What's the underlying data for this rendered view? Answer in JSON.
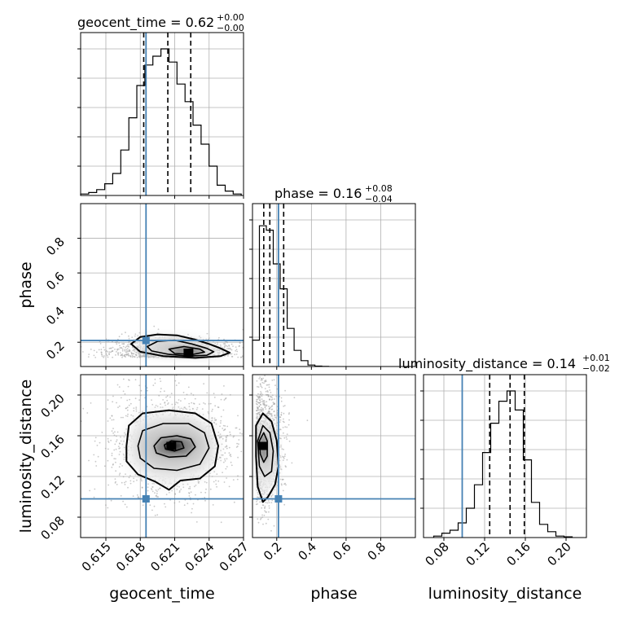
{
  "chart_data": {
    "type": "corner",
    "parameters": [
      "geocent_time",
      "phase",
      "luminosity_distance"
    ],
    "titles": [
      {
        "param": "geocent_time",
        "label": "geocent_time",
        "median": "0.62",
        "plus": "+0.00",
        "minus": "−0.00"
      },
      {
        "param": "phase",
        "label": "phase",
        "median": "0.16",
        "plus": "+0.08",
        "minus": "−0.04"
      },
      {
        "param": "luminosity_distance",
        "label": "luminosity_distance",
        "median": "0.14",
        "plus": "+0.01",
        "minus": "−0.02"
      }
    ],
    "axis_labels": {
      "x": [
        "geocent_time",
        "phase",
        "luminosity_distance"
      ],
      "y": [
        "phase",
        "luminosity_distance"
      ]
    },
    "ranges": {
      "geocent_time": [
        0.6128,
        0.627
      ],
      "phase": [
        0.06,
        1.0
      ],
      "luminosity_distance": [
        0.06,
        0.22
      ]
    },
    "ticks": {
      "geocent_time": {
        "values": [
          0.615,
          0.618,
          0.621,
          0.624,
          0.627
        ],
        "labels": [
          "0.615",
          "0.618",
          "0.621",
          "0.624",
          "0.627"
        ]
      },
      "phase_x": {
        "values": [
          0.2,
          0.4,
          0.6,
          0.8
        ],
        "labels": [
          "0.2",
          "0.4",
          "0.6",
          "0.8"
        ]
      },
      "phase_y": {
        "values": [
          0.2,
          0.4,
          0.6,
          0.8
        ],
        "labels": [
          "0.2",
          "0.4",
          "0.6",
          "0.8"
        ]
      },
      "luminosity_distance": {
        "values": [
          0.08,
          0.12,
          0.16,
          0.2
        ],
        "labels": [
          "0.08",
          "0.12",
          "0.16",
          "0.20"
        ]
      }
    },
    "truths": {
      "geocent_time": 0.6185,
      "phase": 0.21,
      "luminosity_distance": 0.098
    },
    "quantiles": {
      "geocent_time": [
        0.6183,
        0.6204,
        0.6224
      ],
      "phase": [
        0.125,
        0.16,
        0.24
      ],
      "luminosity_distance": [
        0.125,
        0.145,
        0.159
      ]
    },
    "histograms": {
      "geocent_time": {
        "edges": [
          0.6128,
          0.6135,
          0.6142,
          0.6149,
          0.6156,
          0.6163,
          0.617,
          0.6177,
          0.6184,
          0.6191,
          0.6198,
          0.6205,
          0.6212,
          0.6219,
          0.6226,
          0.6233,
          0.624,
          0.6247,
          0.6254,
          0.6261,
          0.6268
        ],
        "counts": [
          0.01,
          0.02,
          0.04,
          0.08,
          0.15,
          0.31,
          0.53,
          0.75,
          0.89,
          0.95,
          1.0,
          0.91,
          0.76,
          0.64,
          0.48,
          0.35,
          0.2,
          0.07,
          0.03,
          0.01
        ]
      },
      "phase": {
        "edges": [
          0.06,
          0.1,
          0.14,
          0.18,
          0.22,
          0.26,
          0.3,
          0.34,
          0.38,
          0.42,
          0.46,
          0.5
        ],
        "counts": [
          0.18,
          0.96,
          0.93,
          0.7,
          0.53,
          0.26,
          0.11,
          0.04,
          0.01,
          0.003,
          0.001
        ]
      },
      "luminosity_distance": {
        "edges": [
          0.07,
          0.078,
          0.086,
          0.094,
          0.102,
          0.11,
          0.118,
          0.126,
          0.134,
          0.142,
          0.15,
          0.158,
          0.166,
          0.174,
          0.182,
          0.19,
          0.198,
          0.206
        ],
        "counts": [
          0.01,
          0.03,
          0.05,
          0.1,
          0.2,
          0.36,
          0.58,
          0.78,
          0.93,
          1.0,
          0.87,
          0.53,
          0.24,
          0.09,
          0.04,
          0.01,
          0.005
        ]
      }
    },
    "contours": {
      "phase_vs_geocent_time": {
        "peak": [
          0.6222,
          0.14
        ],
        "levels": [
          [
            [
              0.6172,
              0.19
            ],
            [
              0.618,
              0.23
            ],
            [
              0.6195,
              0.245
            ],
            [
              0.6212,
              0.24
            ],
            [
              0.6228,
              0.215
            ],
            [
              0.624,
              0.19
            ],
            [
              0.625,
              0.165
            ],
            [
              0.6258,
              0.14
            ],
            [
              0.625,
              0.12
            ],
            [
              0.6228,
              0.11
            ],
            [
              0.62,
              0.12
            ],
            [
              0.618,
              0.145
            ]
          ],
          [
            [
              0.6186,
              0.175
            ],
            [
              0.6195,
              0.205
            ],
            [
              0.621,
              0.212
            ],
            [
              0.6225,
              0.19
            ],
            [
              0.6238,
              0.165
            ],
            [
              0.6244,
              0.145
            ],
            [
              0.6238,
              0.125
            ],
            [
              0.6222,
              0.12
            ],
            [
              0.6205,
              0.13
            ],
            [
              0.619,
              0.15
            ]
          ],
          [
            [
              0.6205,
              0.16
            ],
            [
              0.6218,
              0.175
            ],
            [
              0.6232,
              0.16
            ],
            [
              0.6236,
              0.143
            ],
            [
              0.6226,
              0.13
            ],
            [
              0.621,
              0.135
            ]
          ]
        ]
      },
      "luminosity_distance_vs_geocent_time": {
        "peak": [
          0.6207,
          0.15
        ],
        "levels": [
          [
            [
              0.6168,
              0.15
            ],
            [
              0.617,
              0.17
            ],
            [
              0.6182,
              0.182
            ],
            [
              0.6205,
              0.185
            ],
            [
              0.6228,
              0.182
            ],
            [
              0.6242,
              0.172
            ],
            [
              0.6248,
              0.15
            ],
            [
              0.6245,
              0.13
            ],
            [
              0.6232,
              0.118
            ],
            [
              0.6215,
              0.116
            ],
            [
              0.6205,
              0.107
            ],
            [
              0.6193,
              0.115
            ],
            [
              0.6178,
              0.122
            ],
            [
              0.6168,
              0.135
            ]
          ],
          [
            [
              0.6178,
              0.15
            ],
            [
              0.6182,
              0.165
            ],
            [
              0.62,
              0.172
            ],
            [
              0.6222,
              0.172
            ],
            [
              0.6236,
              0.163
            ],
            [
              0.624,
              0.148
            ],
            [
              0.6232,
              0.132
            ],
            [
              0.6212,
              0.126
            ],
            [
              0.6192,
              0.128
            ],
            [
              0.618,
              0.138
            ]
          ],
          [
            [
              0.6192,
              0.15
            ],
            [
              0.6198,
              0.158
            ],
            [
              0.6212,
              0.16
            ],
            [
              0.6224,
              0.157
            ],
            [
              0.6228,
              0.149
            ],
            [
              0.622,
              0.14
            ],
            [
              0.6205,
              0.139
            ],
            [
              0.6194,
              0.143
            ]
          ],
          [
            [
              0.6201,
              0.151
            ],
            [
              0.6207,
              0.155
            ],
            [
              0.6216,
              0.154
            ],
            [
              0.6218,
              0.148
            ],
            [
              0.621,
              0.145
            ],
            [
              0.6202,
              0.147
            ]
          ]
        ]
      },
      "luminosity_distance_vs_phase": {
        "peak": [
          0.12,
          0.15
        ],
        "levels": [
          [
            [
              0.08,
              0.17
            ],
            [
              0.12,
              0.182
            ],
            [
              0.17,
              0.174
            ],
            [
              0.2,
              0.155
            ],
            [
              0.21,
              0.13
            ],
            [
              0.19,
              0.112
            ],
            [
              0.15,
              0.1
            ],
            [
              0.12,
              0.095
            ],
            [
              0.09,
              0.11
            ],
            [
              0.08,
              0.14
            ]
          ],
          [
            [
              0.09,
              0.155
            ],
            [
              0.12,
              0.17
            ],
            [
              0.16,
              0.163
            ],
            [
              0.18,
              0.145
            ],
            [
              0.17,
              0.125
            ],
            [
              0.13,
              0.12
            ],
            [
              0.1,
              0.13
            ]
          ],
          [
            [
              0.1,
              0.155
            ],
            [
              0.125,
              0.163
            ],
            [
              0.145,
              0.155
            ],
            [
              0.145,
              0.14
            ],
            [
              0.125,
              0.134
            ],
            [
              0.105,
              0.142
            ]
          ]
        ]
      }
    },
    "truth_color": "#4682b4",
    "line_color": "#000000"
  }
}
